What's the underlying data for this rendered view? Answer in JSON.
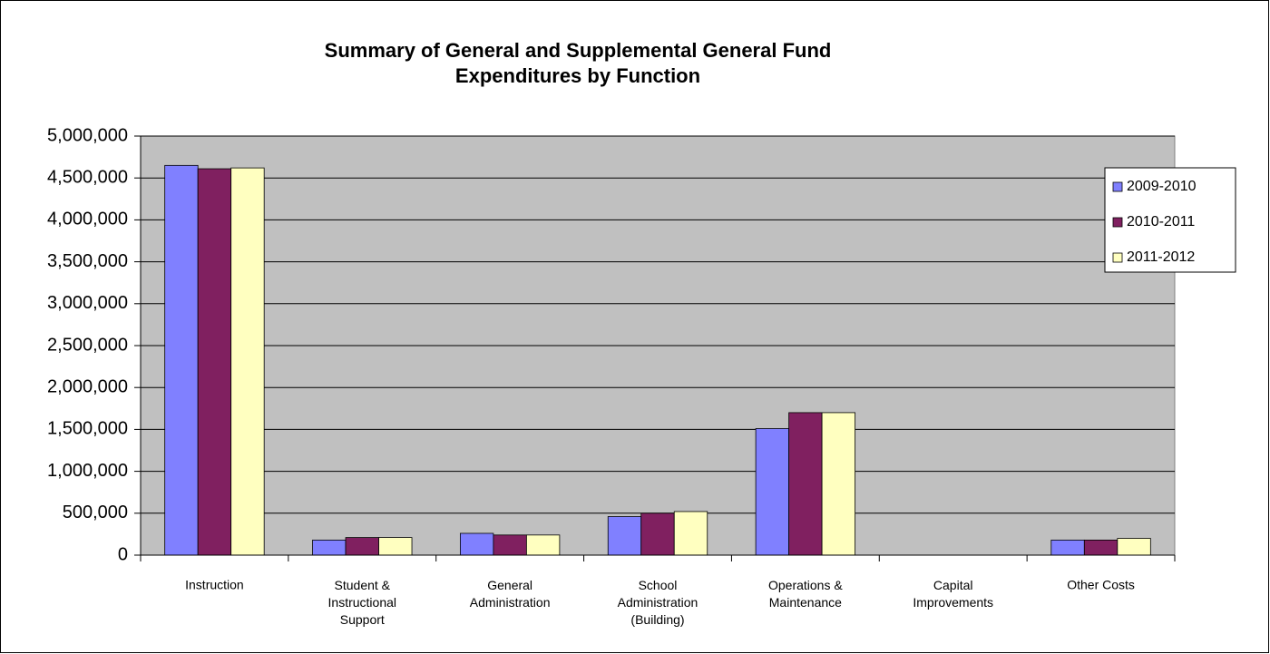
{
  "chart_data": {
    "type": "bar",
    "title": "Summary of General and Supplemental General Fund\nExpenditures by Function",
    "categories": [
      "Instruction",
      "Student &\nInstructional\nSupport",
      "General\nAdministration",
      "School\nAdministration\n(Building)",
      "Operations &\nMaintenance",
      "Capital\nImprovements",
      "Other Costs"
    ],
    "series": [
      {
        "name": "2009-2010",
        "color": "#8080ff",
        "values": [
          4650000,
          180000,
          260000,
          460000,
          1510000,
          0,
          180000
        ]
      },
      {
        "name": "2010-2011",
        "color": "#802060",
        "values": [
          4610000,
          210000,
          240000,
          500000,
          1700000,
          0,
          180000
        ]
      },
      {
        "name": "2011-2012",
        "color": "#ffffc0",
        "values": [
          4620000,
          210000,
          240000,
          520000,
          1700000,
          0,
          200000
        ]
      }
    ],
    "ylim": [
      0,
      5000000
    ],
    "yticks": [
      0,
      {
        "value": 500000,
        "label": "500,000"
      },
      {
        "value": 1000000,
        "label": "1,000,000"
      },
      {
        "value": 1500000,
        "label": "1,500,000"
      },
      {
        "value": 2000000,
        "label": "2,000,000"
      },
      {
        "value": 2500000,
        "label": "2,500,000"
      },
      {
        "value": 3000000,
        "label": "3,000,000"
      },
      {
        "value": 3500000,
        "label": "3,500,000"
      },
      {
        "value": 4000000,
        "label": "4,000,000"
      },
      {
        "value": 4500000,
        "label": "4,500,000"
      },
      {
        "value": 5000000,
        "label": "5,000,000"
      }
    ],
    "grid": true,
    "legend": "right"
  }
}
